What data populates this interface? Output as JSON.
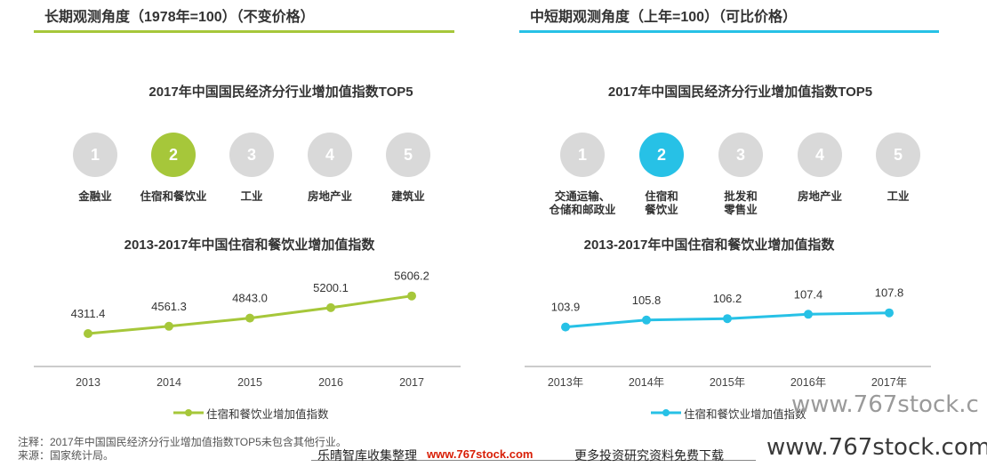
{
  "left": {
    "section_title": "长期观测角度（1978年=100）（不变价格）",
    "accent": "#a6c73a",
    "rank_title": "2017年中国国民经济分行业增加值指数TOP5",
    "ranks": [
      {
        "num": "1",
        "label": "金融业"
      },
      {
        "num": "2",
        "label": "住宿和餐饮业"
      },
      {
        "num": "3",
        "label": "工业"
      },
      {
        "num": "4",
        "label": "房地产业"
      },
      {
        "num": "5",
        "label": "建筑业"
      }
    ],
    "highlight_index": 1
  },
  "right": {
    "section_title": "中短期观测角度（上年=100）（可比价格）",
    "accent": "#27c1e6",
    "rank_title": "2017年中国国民经济分行业增加值指数TOP5",
    "ranks": [
      {
        "num": "1",
        "label": "交通运输、\n仓储和邮政业"
      },
      {
        "num": "2",
        "label": "住宿和\n餐饮业"
      },
      {
        "num": "3",
        "label": "批发和\n零售业"
      },
      {
        "num": "4",
        "label": "房地产业"
      },
      {
        "num": "5",
        "label": "工业"
      }
    ],
    "highlight_index": 1
  },
  "chart_data": [
    {
      "type": "line",
      "title": "2013-2017年中国住宿和餐饮业增加值指数",
      "categories": [
        "2013",
        "2014",
        "2015",
        "2016",
        "2017"
      ],
      "series": [
        {
          "name": "住宿和餐饮业增加值指数",
          "values": [
            4311.4,
            4561.3,
            4843.0,
            5200.1,
            5606.2
          ]
        }
      ],
      "data_labels": [
        "4311.4",
        "4561.3",
        "4843.0",
        "5200.1",
        "5606.2"
      ],
      "color": "#a6c73a",
      "ylim": [
        3300,
        6300
      ],
      "grid": false,
      "legend": "bottom"
    },
    {
      "type": "line",
      "title": "2013-2017年中国住宿和餐饮业增加值指数",
      "categories": [
        "2013年",
        "2014年",
        "2015年",
        "2016年",
        "2017年"
      ],
      "series": [
        {
          "name": "住宿和餐饮业增加值指数",
          "values": [
            103.9,
            105.8,
            106.2,
            107.4,
            107.8
          ]
        }
      ],
      "data_labels": [
        "103.9",
        "105.8",
        "106.2",
        "107.4",
        "107.8"
      ],
      "color": "#27c1e6",
      "ylim": [
        94,
        118
      ],
      "grid": false,
      "legend": "bottom"
    }
  ],
  "notes": {
    "line1": "注释：2017年中国国民经济分行业增加值指数TOP5未包含其他行业。",
    "line2": "来源：国家统计局。"
  },
  "footer": {
    "collect": "乐晴智库收集整理",
    "site": "www.767stock.com",
    "promo": "更多投资研究资料免费下载",
    "watermark": "www.767stock.com",
    "watermark_small": "www.767stock.c"
  }
}
